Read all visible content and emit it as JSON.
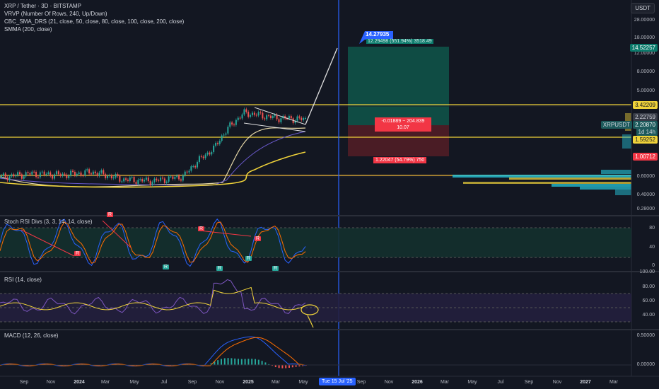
{
  "header": {
    "symbol": "XRP / Tether · 3D · BITSTAMP",
    "ind1": "VRVP (Number Of Rows, 240, Up/Down)",
    "ind2": "CBC_SMA_DRS (21, close, 50, close, 80, close, 100, close, 200, close)",
    "ind3": "SMMA (200, close)",
    "currency_button": "USDT"
  },
  "panes": {
    "stoch": "Stoch RSI Divs (3, 3, 14, 14, close)",
    "rsi": "RSI (14, close)",
    "macd": "MACD (12, 26, close)"
  },
  "colors": {
    "background": "#131722",
    "level_line": "#f0d33a",
    "long_zone": "#0b7a6b",
    "stop_zone": "#7a1f2a",
    "crosshair": "#2962ff",
    "volume_profile": "#26c6da",
    "rsi_line": "#7e57c2",
    "signal": "#f23645"
  },
  "price_scale": {
    "ticks": [
      "28.00000",
      "18.00000",
      "12.00000",
      "8.00000",
      "5.00000",
      "1.40000",
      "0.60000",
      "0.40000",
      "0.28000"
    ],
    "labels": {
      "target": "14.52257",
      "level_high": "3.42209",
      "last1": "2.22759",
      "symbol_tag": "XRPUSDT",
      "last_price": "2.20870",
      "countdown": "1d 14h",
      "level_low": "1.59252",
      "stop": "1.00712"
    }
  },
  "stoch_scale": [
    "80",
    "40",
    "0"
  ],
  "rsi_scale": [
    "100.00",
    "80.00",
    "60.00",
    "40.00"
  ],
  "macd_scale": [
    "0.50000",
    "0.00000"
  ],
  "time_axis": [
    "Sep",
    "Nov",
    "2024",
    "Mar",
    "May",
    "Jul",
    "Sep",
    "Nov",
    "2025",
    "Mar",
    "May",
    "Sep",
    "Nov",
    "2026",
    "Mar",
    "May",
    "Jul",
    "Sep",
    "Nov",
    "2027",
    "Mar"
  ],
  "crosshair_date": "Tue 15 Jul '25",
  "position": {
    "target_label": "14.27935",
    "profit_label": "12.29498 (551.94%) 3518.49",
    "entry_label": "-0.01889 − 204.839",
    "ratio_label": "10.07",
    "loss_label": "1.22047 (54.79%) 750"
  },
  "signals": {
    "bear": [
      "R",
      "R",
      "R"
    ],
    "bull": [
      "R",
      "R",
      "R",
      "R"
    ],
    "top": [
      "R"
    ]
  },
  "chart_data": {
    "type": "line",
    "title": "XRP / Tether · 3D · BITSTAMP",
    "series": [
      {
        "name": "XRP / Tether",
        "x": [
          "2023-09",
          "2023-11",
          "2024-01",
          "2024-03",
          "2024-05",
          "2024-07",
          "2024-09",
          "2024-11",
          "2025-01",
          "2025-03",
          "2025-05"
        ],
        "values": [
          0.55,
          0.6,
          0.58,
          0.62,
          0.52,
          0.5,
          0.56,
          1.1,
          2.6,
          2.3,
          2.21
        ]
      }
    ],
    "levels": [
      3.42209,
      1.59252,
      0.62
    ],
    "target": 14.27935,
    "stop": 1.00712,
    "last_price": 2.2087,
    "y_scale": "log"
  }
}
